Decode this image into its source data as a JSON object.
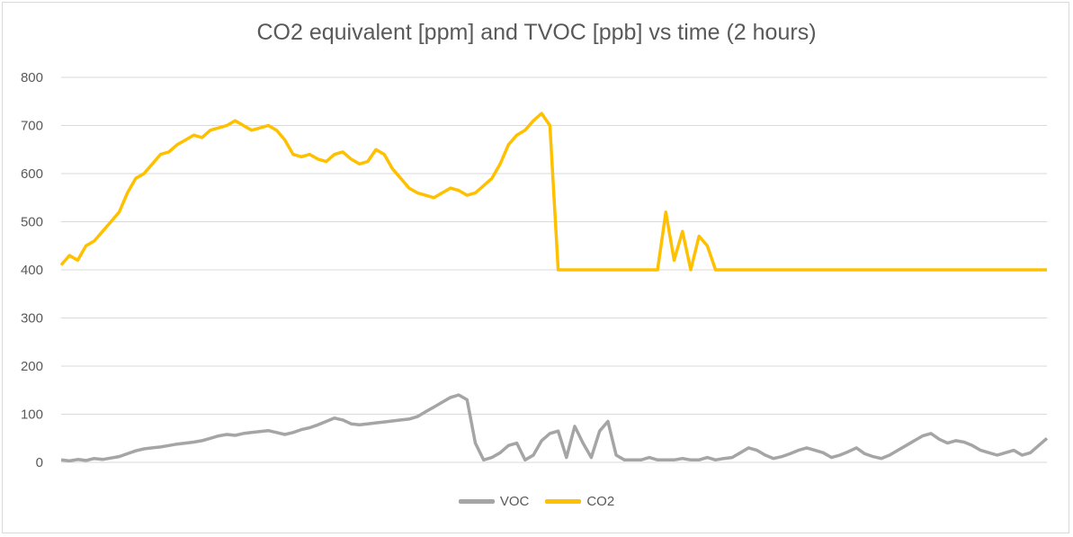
{
  "chart_data": {
    "type": "line",
    "title": "CO2 equivalent [ppm] and TVOC [ppb] vs time (2 hours)",
    "xlabel": "",
    "ylabel": "",
    "ylim": [
      0,
      800
    ],
    "yticks": [
      0,
      100,
      200,
      300,
      400,
      500,
      600,
      700,
      800
    ],
    "grid": true,
    "legend": "bottom",
    "x_count": 120,
    "series": [
      {
        "name": "VOC",
        "color": "#a5a5a5",
        "values": [
          5,
          3,
          6,
          4,
          8,
          6,
          9,
          12,
          18,
          24,
          28,
          30,
          32,
          35,
          38,
          40,
          42,
          45,
          50,
          55,
          58,
          56,
          60,
          62,
          64,
          66,
          62,
          58,
          62,
          68,
          72,
          78,
          85,
          92,
          88,
          80,
          78,
          80,
          82,
          84,
          86,
          88,
          90,
          95,
          105,
          115,
          125,
          135,
          140,
          130,
          40,
          5,
          10,
          20,
          35,
          40,
          5,
          15,
          45,
          60,
          65,
          10,
          75,
          40,
          10,
          65,
          85,
          15,
          5,
          5,
          5,
          10,
          5,
          5,
          5,
          8,
          5,
          5,
          10,
          5,
          8,
          10,
          20,
          30,
          25,
          15,
          8,
          12,
          18,
          25,
          30,
          25,
          20,
          10,
          15,
          22,
          30,
          18,
          12,
          8,
          15,
          25,
          35,
          45,
          55,
          60,
          48,
          40,
          45,
          42,
          35,
          25,
          20,
          15,
          20,
          25,
          15,
          20,
          35,
          50
        ]
      },
      {
        "name": "CO2",
        "color": "#ffc000",
        "values": [
          410,
          430,
          420,
          450,
          460,
          480,
          500,
          520,
          560,
          590,
          600,
          620,
          640,
          645,
          660,
          670,
          680,
          675,
          690,
          695,
          700,
          710,
          700,
          690,
          695,
          700,
          690,
          670,
          640,
          635,
          640,
          630,
          625,
          640,
          645,
          630,
          620,
          625,
          650,
          640,
          610,
          590,
          570,
          560,
          555,
          550,
          560,
          570,
          565,
          555,
          560,
          575,
          590,
          620,
          660,
          680,
          690,
          710,
          725,
          700,
          400,
          400,
          400,
          400,
          400,
          400,
          400,
          400,
          400,
          400,
          400,
          400,
          400,
          520,
          420,
          480,
          400,
          470,
          450,
          400,
          400,
          400,
          400,
          400,
          400,
          400,
          400,
          400,
          400,
          400,
          400,
          400,
          400,
          400,
          400,
          400,
          400,
          400,
          400,
          400,
          400,
          400,
          400,
          400,
          400,
          400,
          400,
          400,
          400,
          400,
          400,
          400,
          400,
          400,
          400,
          400,
          400,
          400,
          400,
          400
        ]
      }
    ]
  }
}
